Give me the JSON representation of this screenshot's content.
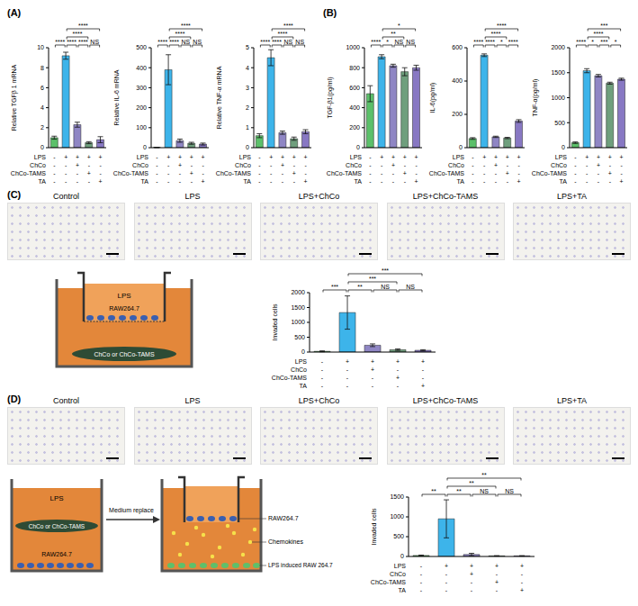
{
  "chart_data": [
    {
      "type": "bar",
      "y_label": "Relative TGFβ 1 mRNA",
      "categories": [
        null,
        null,
        null,
        null,
        null
      ],
      "values": [
        1.0,
        9.2,
        2.3,
        0.5,
        0.8
      ],
      "errors": [
        0.15,
        0.35,
        0.25,
        0.1,
        0.3
      ],
      "colors": [
        "#5cc06a",
        "#3db4ea",
        "#8f86c4",
        "#6f9f7d",
        "#8878c3"
      ],
      "ylim": [
        0,
        10
      ],
      "yticks": [
        0,
        2,
        4,
        6,
        8,
        10
      ],
      "significance": [
        {
          "from": 0,
          "to": 1,
          "label": "****"
        },
        {
          "from": 1,
          "to": 2,
          "label": "****"
        },
        {
          "from": 1,
          "to": 3,
          "label": "****"
        },
        {
          "from": 1,
          "to": 4,
          "label": "****"
        },
        {
          "from": 2,
          "to": 3,
          "label": "****"
        },
        {
          "from": 3,
          "to": 4,
          "label": "NS"
        }
      ],
      "conditions": [
        {
          "label": "LPS",
          "signs": [
            "-",
            "+",
            "+",
            "+",
            "+"
          ]
        },
        {
          "label": "ChCo",
          "signs": [
            "-",
            "-",
            "+",
            "-",
            "-"
          ]
        },
        {
          "label": "ChCo-TAMS",
          "signs": [
            "-",
            "-",
            "-",
            "+",
            "-"
          ]
        },
        {
          "label": "TA",
          "signs": [
            "-",
            "-",
            "-",
            "-",
            "+"
          ]
        }
      ]
    },
    {
      "type": "bar",
      "y_label": "Relative IL-6 mRNA",
      "categories": [
        null,
        null,
        null,
        null,
        null
      ],
      "values": [
        1,
        390,
        35,
        22,
        18
      ],
      "errors": [
        0.5,
        75,
        8,
        5,
        5
      ],
      "colors": [
        "#5cc06a",
        "#3db4ea",
        "#8f86c4",
        "#6f9f7d",
        "#8878c3"
      ],
      "ylim": [
        0,
        500
      ],
      "yticks": [
        0,
        100,
        200,
        300,
        400,
        500
      ],
      "significance": [
        {
          "from": 0,
          "to": 1,
          "label": "****"
        },
        {
          "from": 1,
          "to": 2,
          "label": "****"
        },
        {
          "from": 1,
          "to": 3,
          "label": "****"
        },
        {
          "from": 1,
          "to": 4,
          "label": "****"
        },
        {
          "from": 2,
          "to": 3,
          "label": "NS"
        },
        {
          "from": 3,
          "to": 4,
          "label": "NS"
        }
      ],
      "conditions": [
        {
          "label": "LPS",
          "signs": [
            "-",
            "+",
            "+",
            "+",
            "+"
          ]
        },
        {
          "label": "ChCo",
          "signs": [
            "-",
            "-",
            "+",
            "-",
            "-"
          ]
        },
        {
          "label": "ChCo-TAMS",
          "signs": [
            "-",
            "-",
            "-",
            "+",
            "-"
          ]
        },
        {
          "label": "TA",
          "signs": [
            "-",
            "-",
            "-",
            "-",
            "+"
          ]
        }
      ]
    },
    {
      "type": "bar",
      "y_label": "Relative TNF-α mRNA",
      "categories": [
        null,
        null,
        null,
        null,
        null
      ],
      "values": [
        0.6,
        4.5,
        0.75,
        0.45,
        0.8
      ],
      "errors": [
        0.1,
        0.4,
        0.08,
        0.08,
        0.1
      ],
      "colors": [
        "#5cc06a",
        "#3db4ea",
        "#8f86c4",
        "#6f9f7d",
        "#8878c3"
      ],
      "ylim": [
        0,
        5
      ],
      "yticks": [
        0,
        1,
        2,
        3,
        4,
        5
      ],
      "significance": [
        {
          "from": 0,
          "to": 1,
          "label": "****"
        },
        {
          "from": 1,
          "to": 2,
          "label": "****"
        },
        {
          "from": 1,
          "to": 3,
          "label": "****"
        },
        {
          "from": 1,
          "to": 4,
          "label": "****"
        },
        {
          "from": 2,
          "to": 3,
          "label": "NS"
        },
        {
          "from": 3,
          "to": 4,
          "label": "NS"
        }
      ],
      "conditions": [
        {
          "label": "LPS",
          "signs": [
            "-",
            "+",
            "+",
            "+",
            "+"
          ]
        },
        {
          "label": "ChCo",
          "signs": [
            "-",
            "-",
            "+",
            "-",
            "-"
          ]
        },
        {
          "label": "ChCo-TAMS",
          "signs": [
            "-",
            "-",
            "-",
            "+",
            "-"
          ]
        },
        {
          "label": "TA",
          "signs": [
            "-",
            "-",
            "-",
            "-",
            "+"
          ]
        }
      ]
    },
    {
      "type": "bar",
      "y_label": "TGF-β1(pg/ml)",
      "categories": [
        null,
        null,
        null,
        null,
        null
      ],
      "values": [
        540,
        910,
        820,
        760,
        800
      ],
      "errors": [
        80,
        20,
        15,
        40,
        25
      ],
      "colors": [
        "#5cc06a",
        "#3db4ea",
        "#8f86c4",
        "#6f9f7d",
        "#8878c3"
      ],
      "ylim": [
        0,
        1000
      ],
      "yticks": [
        0,
        200,
        400,
        600,
        800,
        1000
      ],
      "significance": [
        {
          "from": 0,
          "to": 1,
          "label": "****"
        },
        {
          "from": 1,
          "to": 2,
          "label": "*"
        },
        {
          "from": 1,
          "to": 3,
          "label": "**"
        },
        {
          "from": 1,
          "to": 4,
          "label": "*"
        },
        {
          "from": 2,
          "to": 3,
          "label": "NS"
        },
        {
          "from": 3,
          "to": 4,
          "label": "NS"
        }
      ],
      "conditions": [
        {
          "label": "LPS",
          "signs": [
            "-",
            "+",
            "+",
            "+",
            "+"
          ]
        },
        {
          "label": "ChCo",
          "signs": [
            "-",
            "-",
            "+",
            "-",
            "-"
          ]
        },
        {
          "label": "ChCo-TAMS",
          "signs": [
            "-",
            "-",
            "-",
            "+",
            "-"
          ]
        },
        {
          "label": "TA",
          "signs": [
            "-",
            "-",
            "-",
            "-",
            "+"
          ]
        }
      ]
    },
    {
      "type": "bar",
      "y_label": "IL-6(pg/ml)",
      "categories": [
        null,
        null,
        null,
        null,
        null
      ],
      "values": [
        55,
        555,
        65,
        58,
        160
      ],
      "errors": [
        5,
        8,
        4,
        4,
        8
      ],
      "colors": [
        "#5cc06a",
        "#3db4ea",
        "#8f86c4",
        "#6f9f7d",
        "#8878c3"
      ],
      "ylim": [
        0,
        600
      ],
      "yticks": [
        0,
        200,
        400,
        600
      ],
      "significance": [
        {
          "from": 0,
          "to": 1,
          "label": "****"
        },
        {
          "from": 1,
          "to": 2,
          "label": "****"
        },
        {
          "from": 1,
          "to": 3,
          "label": "****"
        },
        {
          "from": 1,
          "to": 4,
          "label": "****"
        },
        {
          "from": 2,
          "to": 3,
          "label": "*"
        },
        {
          "from": 3,
          "to": 4,
          "label": "****"
        }
      ],
      "conditions": [
        {
          "label": "LPS",
          "signs": [
            "-",
            "+",
            "+",
            "+",
            "+"
          ]
        },
        {
          "label": "ChCo",
          "signs": [
            "-",
            "-",
            "+",
            "-",
            "-"
          ]
        },
        {
          "label": "ChCo-TAMS",
          "signs": [
            "-",
            "-",
            "-",
            "+",
            "-"
          ]
        },
        {
          "label": "TA",
          "signs": [
            "-",
            "-",
            "-",
            "-",
            "+"
          ]
        }
      ]
    },
    {
      "type": "bar",
      "y_label": "TNF-α(pg/ml)",
      "categories": [
        null,
        null,
        null,
        null,
        null
      ],
      "values": [
        100,
        1540,
        1440,
        1290,
        1370
      ],
      "errors": [
        15,
        40,
        25,
        20,
        20
      ],
      "colors": [
        "#5cc06a",
        "#3db4ea",
        "#8f86c4",
        "#6f9f7d",
        "#8878c3"
      ],
      "ylim": [
        0,
        2000
      ],
      "yticks": [
        0,
        500,
        1000,
        1500,
        2000
      ],
      "significance": [
        {
          "from": 0,
          "to": 1,
          "label": "****"
        },
        {
          "from": 1,
          "to": 2,
          "label": "*"
        },
        {
          "from": 1,
          "to": 3,
          "label": "****"
        },
        {
          "from": 1,
          "to": 4,
          "label": "***"
        },
        {
          "from": 2,
          "to": 3,
          "label": "***"
        },
        {
          "from": 3,
          "to": 4,
          "label": "*"
        }
      ],
      "conditions": [
        {
          "label": "LPS",
          "signs": [
            "-",
            "+",
            "+",
            "+",
            "+"
          ]
        },
        {
          "label": "ChCo",
          "signs": [
            "-",
            "-",
            "+",
            "-",
            "-"
          ]
        },
        {
          "label": "ChCo-TAMS",
          "signs": [
            "-",
            "-",
            "-",
            "+",
            "-"
          ]
        },
        {
          "label": "TA",
          "signs": [
            "-",
            "-",
            "-",
            "-",
            "+"
          ]
        }
      ]
    },
    {
      "type": "bar",
      "y_label": "Invaded cells",
      "categories": [
        null,
        null,
        null,
        null,
        null
      ],
      "values": [
        25,
        1330,
        230,
        80,
        60
      ],
      "errors": [
        15,
        560,
        45,
        25,
        20
      ],
      "colors": [
        "#5cc06a",
        "#3db4ea",
        "#8f86c4",
        "#6f9f7d",
        "#8878c3"
      ],
      "ylim": [
        0,
        2000
      ],
      "yticks": [
        0,
        500,
        1000,
        1500,
        2000
      ],
      "significance": [
        {
          "from": 0,
          "to": 1,
          "label": "***"
        },
        {
          "from": 1,
          "to": 2,
          "label": "**"
        },
        {
          "from": 1,
          "to": 3,
          "label": "***"
        },
        {
          "from": 1,
          "to": 4,
          "label": "***"
        },
        {
          "from": 2,
          "to": 3,
          "label": "NS"
        },
        {
          "from": 3,
          "to": 4,
          "label": "NS"
        }
      ],
      "conditions": [
        {
          "label": "LPS",
          "signs": [
            "-",
            "+",
            "+",
            "+",
            "+"
          ]
        },
        {
          "label": "ChCo",
          "signs": [
            "-",
            "-",
            "+",
            "-",
            "-"
          ]
        },
        {
          "label": "ChCo-TAMS",
          "signs": [
            "-",
            "-",
            "-",
            "+",
            "-"
          ]
        },
        {
          "label": "TA",
          "signs": [
            "-",
            "-",
            "-",
            "-",
            "+"
          ]
        }
      ]
    },
    {
      "type": "bar",
      "y_label": "Invaded cells",
      "categories": [
        null,
        null,
        null,
        null,
        null
      ],
      "values": [
        25,
        950,
        50,
        15,
        15
      ],
      "errors": [
        10,
        480,
        30,
        5,
        5
      ],
      "colors": [
        "#5cc06a",
        "#3db4ea",
        "#8f86c4",
        "#6f9f7d",
        "#8878c3"
      ],
      "ylim": [
        0,
        1500
      ],
      "yticks": [
        0,
        500,
        1000,
        1500
      ],
      "significance": [
        {
          "from": 0,
          "to": 1,
          "label": "**"
        },
        {
          "from": 1,
          "to": 2,
          "label": "**"
        },
        {
          "from": 1,
          "to": 3,
          "label": "**"
        },
        {
          "from": 1,
          "to": 4,
          "label": "**"
        },
        {
          "from": 2,
          "to": 3,
          "label": "NS"
        },
        {
          "from": 3,
          "to": 4,
          "label": "NS"
        }
      ],
      "conditions": [
        {
          "label": "LPS",
          "signs": [
            "-",
            "+",
            "+",
            "+",
            "+"
          ]
        },
        {
          "label": "ChCo",
          "signs": [
            "-",
            "-",
            "+",
            "-",
            "-"
          ]
        },
        {
          "label": "ChCo-TAMS",
          "signs": [
            "-",
            "-",
            "-",
            "+",
            "-"
          ]
        },
        {
          "label": "TA",
          "signs": [
            "-",
            "-",
            "-",
            "-",
            "+"
          ]
        }
      ]
    }
  ],
  "figure": {
    "panel_labels": [
      "(A)",
      "(B)",
      "(C)",
      "(D)"
    ],
    "micrographs": {
      "C": [
        "Control",
        "LPS",
        "LPS+ChCo",
        "LPS+ChCo-TAMS",
        "LPS+TA"
      ],
      "D": [
        "Control",
        "LPS",
        "LPS+ChCo",
        "LPS+ChCo-TAMS",
        "LPS+TA"
      ]
    },
    "schematic_C": {
      "medium": "LPS",
      "cells": "RAW264.7",
      "material": "ChCo or ChCo-TAMS"
    },
    "schematic_D": {
      "medium": "LPS",
      "material": "ChCo or ChCo-TAMS",
      "cells": "RAW264.7",
      "step": "Medium replace",
      "cells_after": "RAW264.7",
      "secreted": "Chemokines",
      "induced": "LPS induced RAW 264.7"
    }
  }
}
